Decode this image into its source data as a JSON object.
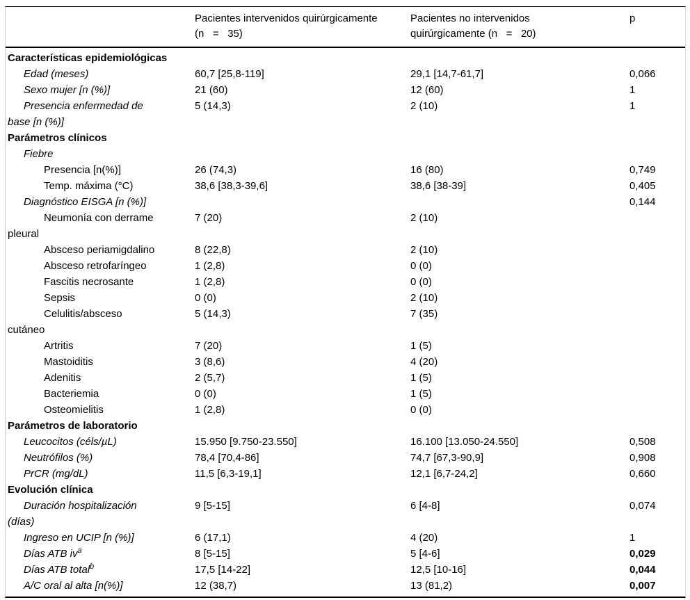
{
  "table": {
    "header": {
      "col_label": "",
      "col_intervened": "Pacientes intervenidos quirúrgicamente\n(n   =   35)",
      "col_not_intervened": "Pacientes no intervenidos\nquirúrgicamente (n   =   20)",
      "col_p": "p"
    },
    "rows": [
      {
        "type": "section",
        "label": "Características epidemiológicas"
      },
      {
        "type": "item",
        "level": 1,
        "label": "Edad (meses)",
        "intervened": "60,7 [25,8-119]",
        "not_intervened": "29,1 [14,7-61,7]",
        "p": "0,066"
      },
      {
        "type": "item",
        "level": 1,
        "label": "Sexo mujer [n (%)]",
        "intervened": "21 (60)",
        "not_intervened": "12 (60)",
        "p": "1"
      },
      {
        "type": "item",
        "level": 1,
        "label": "Presencia enfermedad de\nbase [n (%)]",
        "intervened": "5 (14,3)",
        "not_intervened": "2 (10)",
        "p": "1"
      },
      {
        "type": "section",
        "label": "Parámetros clínicos"
      },
      {
        "type": "item",
        "level": 1,
        "label": "Fiebre"
      },
      {
        "type": "item",
        "level": 2,
        "label": "Presencia [n(%)]",
        "intervened": "26 (74,3)",
        "not_intervened": "16 (80)",
        "p": "0,749"
      },
      {
        "type": "item",
        "level": 2,
        "label": "Temp. máxima (°C)",
        "intervened": "38,6 [38,3-39,6]",
        "not_intervened": "38,6 [38-39]",
        "p": "0,405"
      },
      {
        "type": "item",
        "level": 1,
        "label": "Diagnóstico EISGA [n (%)]",
        "p": "0,144"
      },
      {
        "type": "item",
        "level": 2,
        "label": "Neumonía con derrame\npleural",
        "intervened": "7 (20)",
        "not_intervened": "2 (10)"
      },
      {
        "type": "item",
        "level": 2,
        "label": "Absceso periamigdalino",
        "intervened": "8 (22,8)",
        "not_intervened": "2 (10)"
      },
      {
        "type": "item",
        "level": 2,
        "label": "Absceso retrofaríngeo",
        "intervened": "1 (2,8)",
        "not_intervened": "0 (0)"
      },
      {
        "type": "item",
        "level": 2,
        "label": "Fascitis necrosante",
        "intervened": "1 (2,8)",
        "not_intervened": "0 (0)"
      },
      {
        "type": "item",
        "level": 2,
        "label": "Sepsis",
        "intervened": "0 (0)",
        "not_intervened": "2 (10)"
      },
      {
        "type": "item",
        "level": 2,
        "label": "Celulitis/absceso\ncutáneo",
        "intervened": "5 (14,3)",
        "not_intervened": "7 (35)"
      },
      {
        "type": "item",
        "level": 2,
        "label": "Artritis",
        "intervened": "7 (20)",
        "not_intervened": "1 (5)"
      },
      {
        "type": "item",
        "level": 2,
        "label": "Mastoiditis",
        "intervened": "3 (8,6)",
        "not_intervened": "4 (20)"
      },
      {
        "type": "item",
        "level": 2,
        "label": "Adenitis",
        "intervened": "2 (5,7)",
        "not_intervened": "1 (5)"
      },
      {
        "type": "item",
        "level": 2,
        "label": "Bacteriemia",
        "intervened": "0 (0)",
        "not_intervened": "1 (5)"
      },
      {
        "type": "item",
        "level": 2,
        "label": "Osteomielitis",
        "intervened": "1 (2,8)",
        "not_intervened": "0 (0)"
      },
      {
        "type": "section",
        "label": "Parámetros de laboratorio"
      },
      {
        "type": "item",
        "level": 1,
        "label": "Leucocitos (céls/µL)",
        "intervened": "15.950 [9.750-23.550]",
        "not_intervened": "16.100 [13.050-24.550]",
        "p": "0,508"
      },
      {
        "type": "item",
        "level": 1,
        "label": "Neutrófilos (%)",
        "intervened": "78,4 [70,4-86]",
        "not_intervened": "74,7 [67,3-90,9]",
        "p": "0,908"
      },
      {
        "type": "item",
        "level": 1,
        "label": "PrCR (mg/dL)",
        "intervened": "11,5 [6,3-19,1]",
        "not_intervened": "12,1 [6,7-24,2]",
        "p": "0,660"
      },
      {
        "type": "section",
        "label": "Evolución clínica"
      },
      {
        "type": "item",
        "level": 1,
        "label": "Duración hospitalización\n(días)",
        "intervened": "9 [5-15]",
        "not_intervened": "6 [4-8]",
        "p": "0,074"
      },
      {
        "type": "item",
        "level": 1,
        "label": "Ingreso en UCIP [n (%)]",
        "intervened": "6 (17,1)",
        "not_intervened": "4 (20)",
        "p": "1"
      },
      {
        "type": "item",
        "level": 1,
        "label": "Días ATB iv",
        "sup": "a",
        "intervened": "8 [5-15]",
        "not_intervened": "5 [4-6]",
        "p": "0,029",
        "p_bold": true
      },
      {
        "type": "item",
        "level": 1,
        "label": "Días ATB total",
        "sup": "b",
        "intervened": "17,5 [14-22]",
        "not_intervened": "12,5 [10-16]",
        "p": "0,044",
        "p_bold": true
      },
      {
        "type": "item",
        "level": 1,
        "label": "A/C oral al alta [n(%)]",
        "intervened": "12 (38,7)",
        "not_intervened": "13 (81,2)",
        "p": "0,007",
        "p_bold": true
      }
    ]
  },
  "colors": {
    "rule_dark": "#000000",
    "rule_light": "#cccccc",
    "text": "#000000",
    "background": "#ffffff"
  }
}
